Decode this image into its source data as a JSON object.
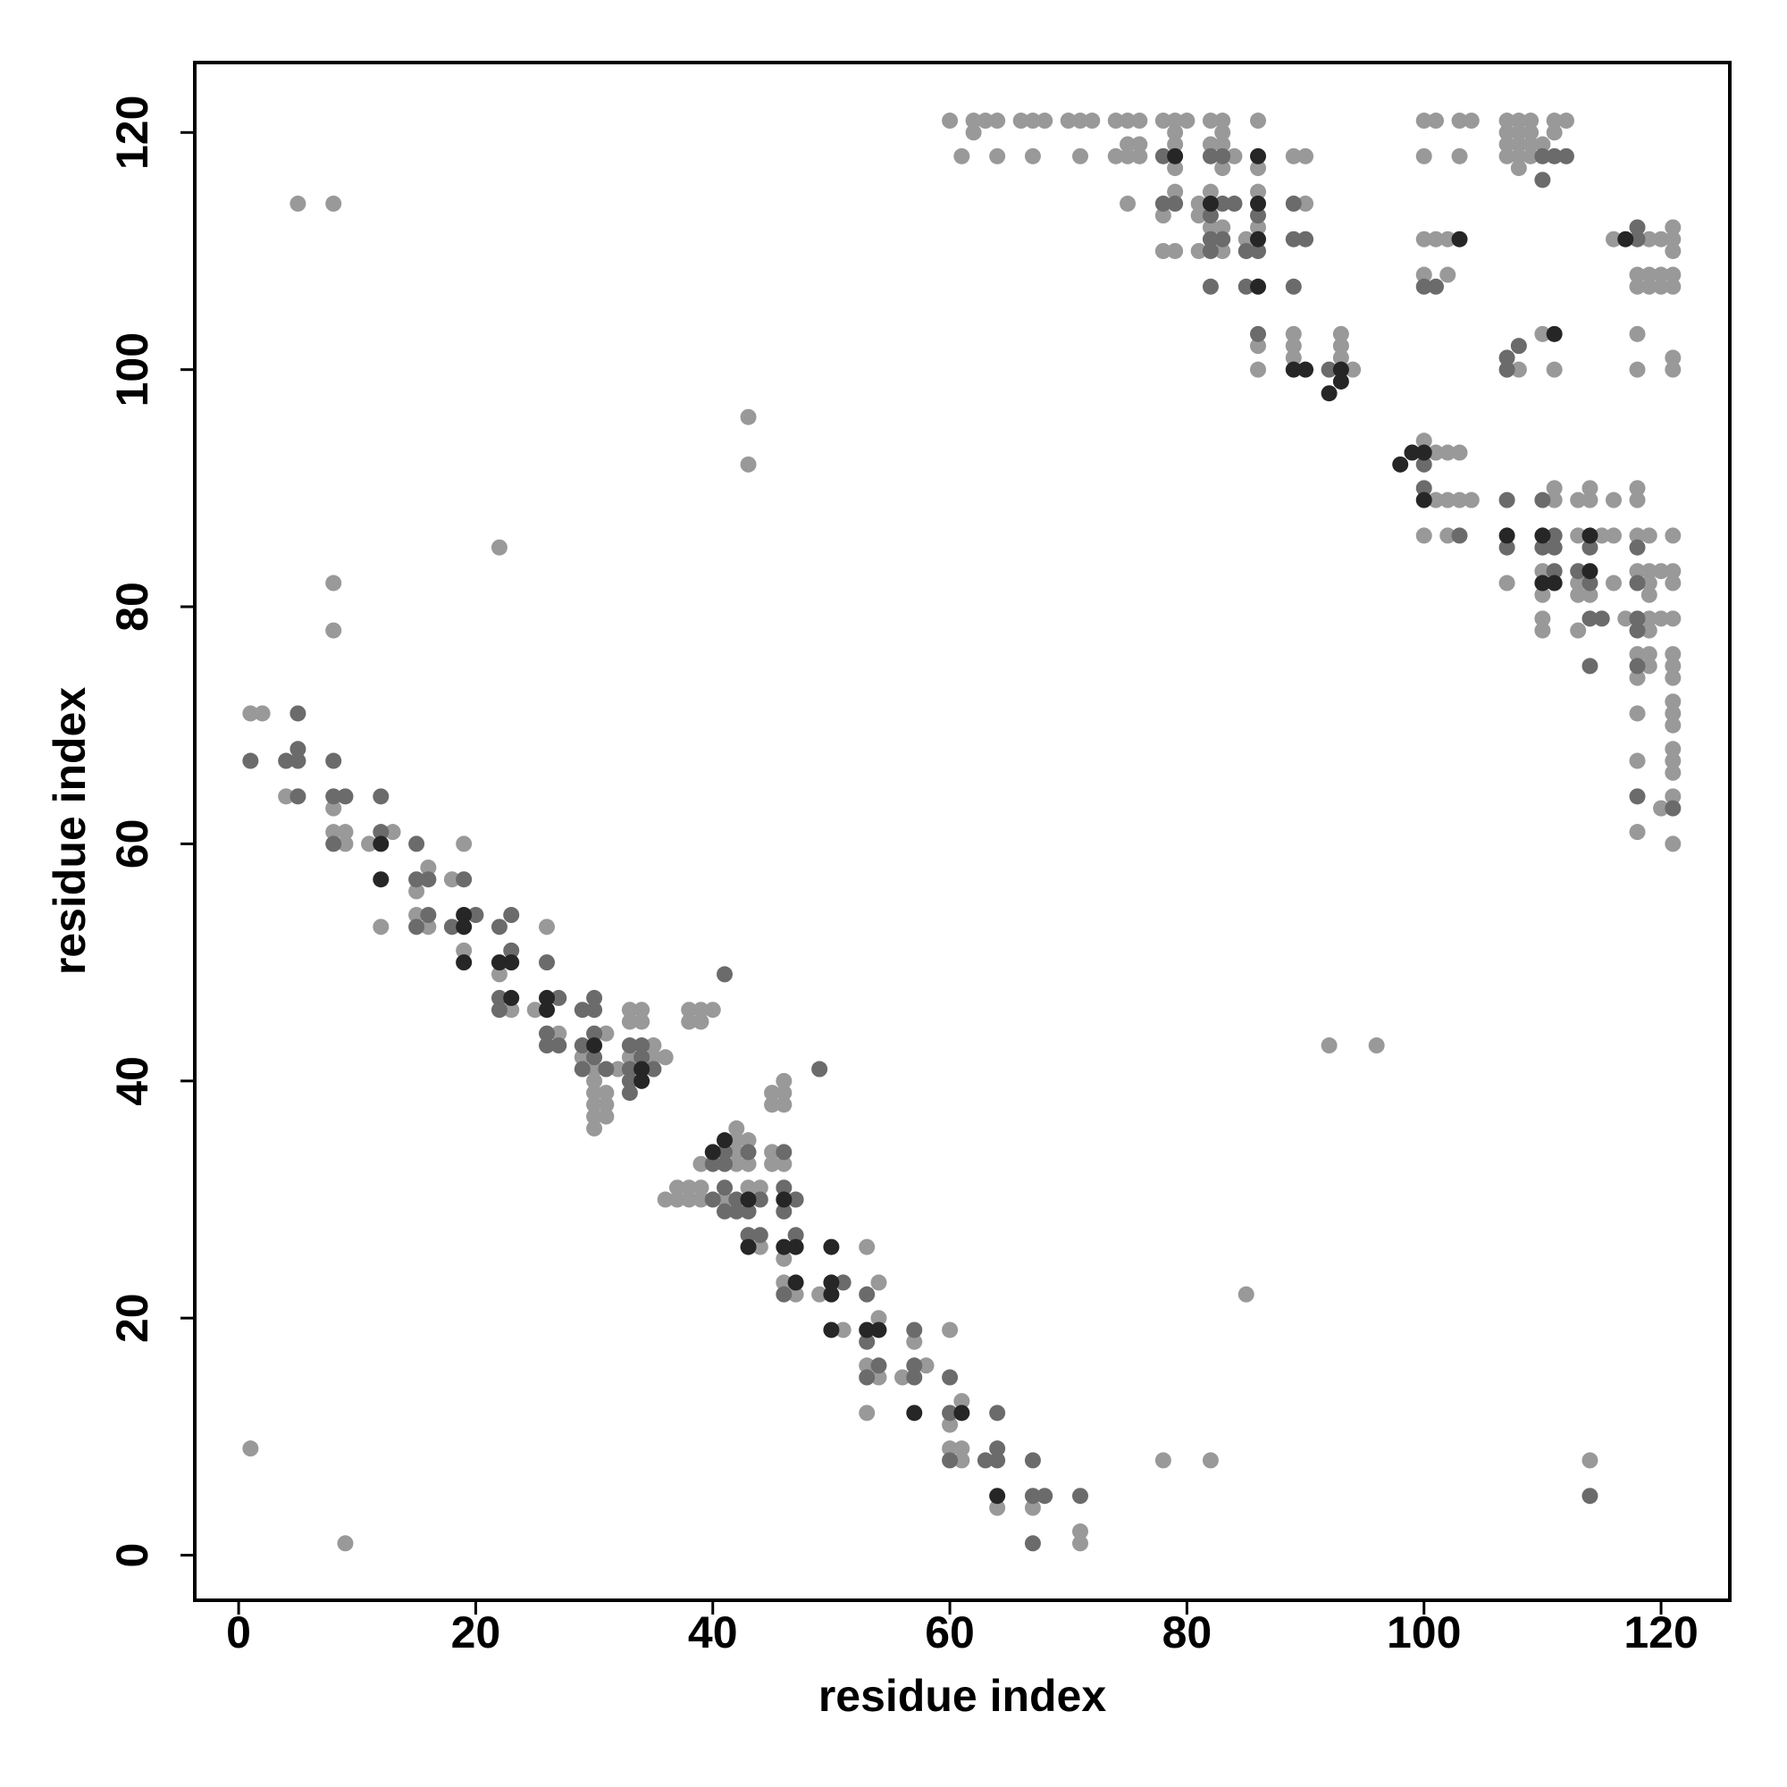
{
  "chart_data": {
    "type": "scatter",
    "xlabel": "residue index",
    "ylabel": "residue index",
    "xlim": [
      -3.7,
      125.8
    ],
    "ylim": [
      -3.8,
      125.9
    ],
    "xticks": [
      0,
      20,
      40,
      60,
      80,
      100,
      120
    ],
    "yticks": [
      0,
      20,
      40,
      60,
      80,
      100,
      120
    ],
    "grid": false,
    "series": [
      {
        "color": "#999999",
        "x": [
          2,
          4,
          8,
          8,
          9,
          9,
          11,
          13,
          12,
          16,
          15,
          15,
          16,
          18,
          19,
          19,
          22,
          23,
          25,
          26,
          27,
          31,
          29,
          30,
          30,
          30,
          31,
          30,
          31,
          30,
          31,
          30,
          32,
          33,
          34,
          33,
          34,
          35,
          33,
          35,
          36,
          38,
          39,
          40,
          38,
          39,
          43,
          43,
          22,
          8,
          8,
          5,
          8,
          1,
          9,
          1,
          46,
          45,
          46,
          45,
          46,
          42,
          42,
          43,
          42,
          39,
          42,
          43,
          45,
          45,
          46,
          36,
          37,
          38,
          39,
          37,
          38,
          39,
          41,
          43,
          44,
          44,
          46,
          53,
          46,
          47,
          49,
          54,
          51,
          54,
          53,
          54,
          56,
          58,
          57,
          53,
          60,
          61,
          60,
          60,
          61,
          61,
          64,
          67,
          71,
          71,
          78,
          82,
          85,
          92,
          96,
          114,
          60,
          62,
          63,
          64,
          66,
          67,
          68,
          70,
          71,
          72,
          74,
          75,
          76,
          78,
          79,
          80,
          82,
          83,
          86,
          100,
          101,
          103,
          104,
          107,
          108,
          109,
          111,
          112,
          62,
          79,
          83,
          107,
          108,
          109,
          111,
          75,
          76,
          79,
          82,
          83,
          107,
          108,
          109,
          110,
          61,
          64,
          67,
          71,
          74,
          75,
          76,
          84,
          89,
          90,
          100,
          103,
          107,
          108,
          109,
          79,
          83,
          86,
          108,
          79,
          82,
          86,
          75,
          81,
          90,
          78,
          81,
          82,
          83,
          86,
          121,
          85,
          100,
          101,
          102,
          116,
          119,
          120,
          121,
          78,
          79,
          81,
          83,
          121,
          100,
          102,
          118,
          119,
          120,
          121,
          118,
          119,
          120,
          121,
          89,
          93,
          110,
          118,
          86,
          89,
          93,
          89,
          93,
          121,
          86,
          94,
          108,
          111,
          118,
          121,
          100,
          101,
          102,
          103,
          111,
          114,
          118,
          101,
          102,
          103,
          104,
          111,
          113,
          114,
          116,
          118,
          100,
          102,
          113,
          115,
          116,
          118,
          119,
          121,
          110,
          118,
          119,
          120,
          121,
          107,
          113,
          116,
          119,
          121,
          110,
          113,
          114,
          119,
          110,
          117,
          119,
          120,
          121,
          110,
          113,
          119,
          118,
          119,
          121,
          119,
          121,
          118,
          121,
          121,
          118,
          121,
          121,
          121,
          118,
          121,
          121,
          121,
          120,
          118,
          121
        ],
        "values": [
          71,
          64,
          63,
          61,
          61,
          60,
          60,
          61,
          53,
          58,
          56,
          54,
          53,
          57,
          60,
          51,
          49,
          46,
          46,
          53,
          44,
          44,
          42,
          41,
          40,
          39,
          39,
          38,
          38,
          37,
          37,
          36,
          41,
          46,
          46,
          45,
          45,
          43,
          42,
          42,
          42,
          46,
          46,
          46,
          45,
          45,
          96,
          92,
          85,
          82,
          78,
          114,
          114,
          9,
          1,
          71,
          40,
          39,
          39,
          38,
          38,
          36,
          35,
          35,
          34,
          33,
          33,
          33,
          34,
          33,
          33,
          30,
          31,
          31,
          31,
          30,
          30,
          30,
          30,
          31,
          31,
          26,
          25,
          26,
          23,
          22,
          22,
          23,
          19,
          20,
          16,
          15,
          15,
          16,
          18,
          12,
          19,
          13,
          11,
          9,
          9,
          8,
          4,
          4,
          2,
          1,
          8,
          8,
          22,
          43,
          43,
          8,
          121,
          121,
          121,
          121,
          121,
          121,
          121,
          121,
          121,
          121,
          121,
          121,
          121,
          121,
          121,
          121,
          121,
          121,
          121,
          121,
          121,
          121,
          121,
          121,
          121,
          121,
          121,
          121,
          120,
          120,
          120,
          120,
          120,
          120,
          120,
          119,
          119,
          119,
          119,
          119,
          119,
          119,
          119,
          119,
          118,
          118,
          118,
          118,
          118,
          118,
          118,
          118,
          118,
          118,
          118,
          118,
          118,
          118,
          118,
          117,
          117,
          117,
          117,
          115,
          115,
          115,
          114,
          114,
          114,
          113,
          113,
          112,
          112,
          112,
          112,
          111,
          111,
          111,
          111,
          111,
          111,
          111,
          111,
          110,
          110,
          110,
          110,
          110,
          108,
          108,
          108,
          108,
          108,
          108,
          107,
          107,
          107,
          107,
          103,
          103,
          103,
          103,
          102,
          102,
          102,
          101,
          101,
          101,
          100,
          100,
          100,
          100,
          100,
          100,
          94,
          93,
          93,
          93,
          90,
          90,
          90,
          89,
          89,
          89,
          89,
          89,
          89,
          89,
          89,
          89,
          86,
          86,
          86,
          86,
          86,
          86,
          86,
          86,
          83,
          83,
          83,
          83,
          83,
          82,
          82,
          82,
          82,
          82,
          81,
          81,
          81,
          81,
          79,
          79,
          79,
          79,
          79,
          78,
          78,
          78,
          76,
          76,
          76,
          75,
          75,
          74,
          74,
          72,
          71,
          71,
          70,
          68,
          67,
          67,
          66,
          64,
          63,
          61,
          60
        ]
      },
      {
        "color": "#6b6b6b",
        "x": [
          1,
          5,
          4,
          5,
          5,
          5,
          8,
          8,
          9,
          8,
          12,
          12,
          15,
          15,
          16,
          16,
          15,
          19,
          18,
          20,
          22,
          23,
          23,
          22,
          22,
          26,
          27,
          26,
          26,
          27,
          29,
          30,
          30,
          29,
          30,
          30,
          29,
          31,
          33,
          34,
          34,
          33,
          35,
          33,
          33,
          41,
          49,
          41,
          43,
          40,
          41,
          46,
          40,
          41,
          42,
          44,
          41,
          42,
          43,
          46,
          47,
          46,
          43,
          44,
          47,
          46,
          51,
          53,
          53,
          54,
          53,
          57,
          57,
          57,
          60,
          60,
          64,
          64,
          63,
          64,
          60,
          67,
          67,
          68,
          67,
          71,
          114,
          78,
          82,
          83,
          110,
          111,
          112,
          110,
          78,
          79,
          83,
          84,
          89,
          82,
          86,
          82,
          83,
          89,
          90,
          118,
          82,
          85,
          86,
          118,
          82,
          85,
          89,
          100,
          101,
          86,
          108,
          107,
          92,
          107,
          100,
          100,
          107,
          110,
          103,
          111,
          107,
          110,
          111,
          114,
          118,
          111,
          113,
          114,
          118,
          114,
          115,
          118,
          118,
          114,
          118,
          118,
          121
        ],
        "values": [
          67,
          71,
          67,
          68,
          67,
          64,
          67,
          64,
          64,
          60,
          64,
          61,
          60,
          57,
          57,
          54,
          53,
          57,
          53,
          54,
          53,
          54,
          51,
          47,
          46,
          50,
          47,
          44,
          43,
          43,
          46,
          47,
          46,
          43,
          44,
          42,
          41,
          41,
          43,
          43,
          42,
          41,
          41,
          40,
          39,
          49,
          41,
          34,
          34,
          33,
          33,
          34,
          30,
          31,
          30,
          30,
          29,
          29,
          29,
          31,
          30,
          29,
          27,
          27,
          27,
          22,
          23,
          22,
          18,
          16,
          15,
          16,
          15,
          19,
          15,
          12,
          12,
          9,
          8,
          8,
          8,
          8,
          5,
          5,
          1,
          5,
          5,
          118,
          118,
          118,
          118,
          118,
          118,
          116,
          114,
          114,
          114,
          114,
          114,
          113,
          113,
          111,
          111,
          111,
          111,
          111,
          110,
          110,
          110,
          112,
          107,
          107,
          107,
          107,
          107,
          103,
          102,
          101,
          100,
          100,
          92,
          90,
          89,
          89,
          86,
          86,
          85,
          85,
          85,
          85,
          85,
          83,
          83,
          82,
          82,
          79,
          79,
          79,
          78,
          75,
          75,
          64,
          63
        ]
      },
      {
        "color": "#262626",
        "x": [
          12,
          12,
          19,
          19,
          19,
          22,
          23,
          23,
          26,
          26,
          30,
          34,
          34,
          41,
          40,
          43,
          46,
          43,
          46,
          47,
          50,
          47,
          50,
          50,
          50,
          53,
          54,
          57,
          61,
          64,
          79,
          86,
          82,
          86,
          86,
          103,
          117,
          86,
          111,
          89,
          90,
          93,
          93,
          92,
          99,
          100,
          98,
          100,
          107,
          110,
          114,
          114,
          110,
          111
        ],
        "values": [
          60,
          57,
          54,
          53,
          50,
          50,
          50,
          47,
          47,
          46,
          43,
          41,
          40,
          35,
          34,
          30,
          30,
          26,
          26,
          26,
          26,
          23,
          23,
          22,
          19,
          19,
          19,
          12,
          12,
          5,
          118,
          118,
          114,
          114,
          111,
          111,
          111,
          107,
          103,
          100,
          100,
          100,
          99,
          98,
          93,
          93,
          92,
          89,
          86,
          86,
          86,
          83,
          82,
          82
        ]
      }
    ]
  }
}
